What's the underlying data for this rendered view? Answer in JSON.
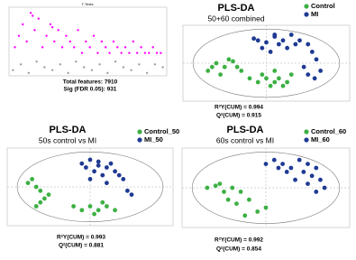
{
  "chart_data": [
    {
      "type": "scatter",
      "title": "T-Tests",
      "annotations": [
        "Total features: 7910",
        "Sig (FDR 0.05): 931"
      ],
      "xlim": [
        0,
        8000
      ],
      "ylim": [
        0,
        12
      ],
      "series": [
        {
          "color": "#ff00ff",
          "x": [
            300,
            500,
            700,
            900,
            1100,
            1300,
            1500,
            1700,
            1900,
            2100,
            2300,
            2500,
            2700,
            2900,
            3100,
            3300,
            3500,
            3700,
            3900,
            4100,
            4300,
            4500,
            4700,
            4900,
            5100,
            5300,
            5500,
            5700,
            5900,
            6100,
            6300,
            6500,
            6700,
            6900,
            7100,
            7300,
            7500,
            7700,
            1200,
            2200
          ],
          "values": [
            5,
            7,
            9,
            6,
            11,
            8,
            10,
            5,
            7,
            9,
            6,
            8,
            5,
            7,
            6,
            5,
            8,
            4,
            6,
            5,
            7,
            4,
            6,
            5,
            4,
            6,
            5,
            4,
            5,
            4,
            6,
            4,
            5,
            4,
            4,
            5,
            4,
            4,
            10.5,
            8.5
          ]
        },
        {
          "color": "#a0a0a0",
          "x": [
            200,
            600,
            1000,
            1400,
            1800,
            2200,
            2600,
            3000,
            3400,
            3800,
            4200,
            4600,
            5000,
            5400,
            5800,
            6200,
            6600,
            7000,
            7400,
            7800
          ],
          "values": [
            1,
            2,
            0.5,
            2.5,
            1.5,
            1,
            2,
            0.5,
            2.5,
            1.5,
            1,
            2,
            0.5,
            2.5,
            1.5,
            1,
            2,
            0.5,
            2,
            1.5
          ]
        }
      ]
    },
    {
      "type": "scatter",
      "title": "PLS-DA",
      "subtitle": "50+60 combined",
      "annotations": [
        "R²Y(CUM) = 0.994",
        "Q²(CUM) = 0.915"
      ],
      "xlim": [
        -10,
        10
      ],
      "ylim": [
        -10,
        10
      ],
      "series": [
        {
          "name": "Control",
          "color": "#3cb043",
          "x": [
            -6,
            -5,
            -4.5,
            -7,
            -5.5,
            -3,
            -4,
            -2,
            -1,
            0,
            1,
            0.5,
            -0.5,
            1.5,
            2,
            2.5,
            3,
            1,
            -6.5,
            -3.5
          ],
          "values": [
            0,
            -1,
            1,
            -2,
            -3,
            -2,
            0.5,
            -4,
            -5,
            -4,
            -5,
            -6,
            -3,
            -4,
            -6,
            -5,
            -3,
            -2,
            -1,
            -1
          ]
        },
        {
          "name": "MI",
          "color": "#1f3a93",
          "x": [
            -1,
            0,
            1,
            2,
            -0.5,
            1.5,
            3,
            4,
            5,
            5.5,
            6,
            4.5,
            5,
            6.5,
            0.5,
            2.5,
            -1.5,
            1,
            3.5,
            5.8
          ],
          "values": [
            6,
            5.5,
            7,
            6,
            4,
            5,
            7.5,
            6,
            5,
            3,
            1,
            -1,
            -3,
            -2,
            3,
            4,
            6.5,
            7.5,
            5,
            -4
          ]
        }
      ]
    },
    {
      "type": "scatter",
      "title": "PLS-DA",
      "subtitle": "50s control vs MI",
      "annotations": [
        "R²Y(CUM) = 0.993",
        "Q²(CUM) = 0.881"
      ],
      "xlim": [
        -10,
        10
      ],
      "ylim": [
        -10,
        10
      ],
      "series": [
        {
          "name": "Control_50",
          "color": "#3cb043",
          "x": [
            -7,
            -6.5,
            -6,
            -5.5,
            -7.5,
            -6,
            -5,
            -6.5,
            -2,
            -1,
            0,
            1,
            2,
            1.5,
            0.5,
            3
          ],
          "values": [
            2,
            0,
            -1,
            -3,
            1,
            -4,
            -2,
            -5,
            -5,
            -6,
            -5,
            -6,
            -5,
            -4,
            -7,
            -6
          ]
        },
        {
          "name": "MI_50",
          "color": "#1f3a93",
          "x": [
            -1,
            0,
            1,
            2,
            0.5,
            -0.5,
            1.5,
            3,
            2.5,
            3.5,
            2,
            4,
            5,
            4.5,
            0,
            1
          ],
          "values": [
            6,
            7,
            6.5,
            5,
            4,
            5,
            3,
            4,
            6,
            3,
            1,
            2,
            -2,
            -1,
            2,
            5.5
          ]
        }
      ]
    },
    {
      "type": "scatter",
      "title": "PLS-DA",
      "subtitle": "60s control vs MI",
      "annotations": [
        "R²Y(CUM) = 0.992",
        "Q²(CUM) = 0.854"
      ],
      "xlim": [
        -10,
        10
      ],
      "ylim": [
        -10,
        10
      ],
      "series": [
        {
          "name": "Control_60",
          "color": "#3cb043",
          "x": [
            -7,
            -6,
            -5,
            -4,
            -3,
            -5.5,
            -2,
            -1,
            -3.5,
            -4.5,
            0,
            -2.5
          ],
          "values": [
            0,
            0.5,
            -1,
            0,
            -1,
            1,
            -3,
            -6,
            -4,
            -3,
            -5,
            -7
          ]
        },
        {
          "name": "MI_60",
          "color": "#1f3a93",
          "x": [
            0,
            1,
            2,
            3,
            4,
            5,
            6,
            5.5,
            4.5,
            3.5,
            6.5,
            7,
            2.5,
            1.5,
            5,
            6
          ],
          "values": [
            6,
            7,
            6,
            5,
            7,
            6,
            5,
            3,
            4,
            2,
            2,
            0,
            4,
            5,
            1,
            -1
          ]
        }
      ]
    }
  ]
}
